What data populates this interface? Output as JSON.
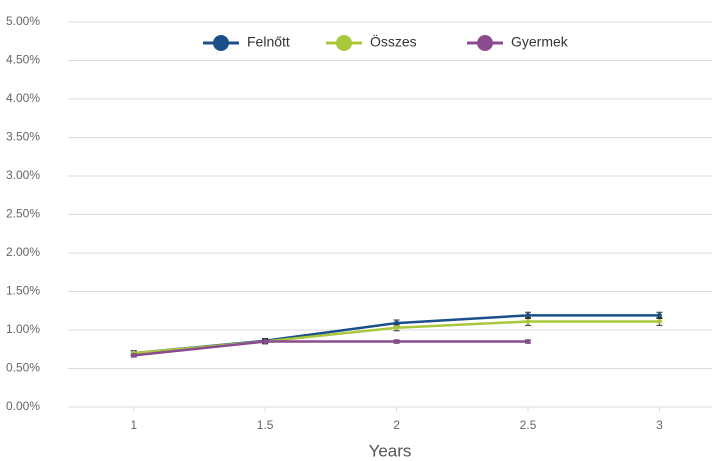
{
  "chart_data": {
    "type": "line",
    "x": [
      1,
      1.5,
      2,
      2.5,
      3
    ],
    "xlabel": "Years",
    "xlim": [
      0.75,
      3.2
    ],
    "xticks": [
      1,
      1.5,
      2,
      2.5,
      3
    ],
    "ylim": [
      0,
      5
    ],
    "yticks": [
      {
        "value": 0,
        "label": "0.00%"
      },
      {
        "value": 0.5,
        "label": "0.50%"
      },
      {
        "value": 1,
        "label": "1.00%"
      },
      {
        "value": 1.5,
        "label": "1.50%"
      },
      {
        "value": 2,
        "label": "2.00%"
      },
      {
        "value": 2.5,
        "label": "2.50%"
      },
      {
        "value": 3,
        "label": "3.00%"
      },
      {
        "value": 3.5,
        "label": "3.50%"
      },
      {
        "value": 4,
        "label": "4.00%"
      },
      {
        "value": 4.5,
        "label": "4.50%"
      },
      {
        "value": 5,
        "label": "5.00%"
      }
    ],
    "grid": true,
    "legend": "top",
    "series": [
      {
        "name": "Felnőtt",
        "color": "#1b4f8a",
        "values": [
          0.7,
          0.86,
          1.09,
          1.19,
          1.19
        ],
        "errors": [
          0.03,
          0.03,
          0.04,
          0.04,
          0.04
        ]
      },
      {
        "name": "Összes",
        "color": "#a9c83c",
        "values": [
          0.7,
          0.85,
          1.03,
          1.11,
          1.11
        ],
        "errors": [
          0.03,
          0.03,
          0.04,
          0.05,
          0.05
        ]
      },
      {
        "name": "Gyermek",
        "color": "#8a4b8f",
        "values": [
          0.67,
          0.85,
          0.85,
          0.85,
          null
        ],
        "errors": [
          0.02,
          0.02,
          0.02,
          0.02,
          null
        ]
      }
    ]
  }
}
